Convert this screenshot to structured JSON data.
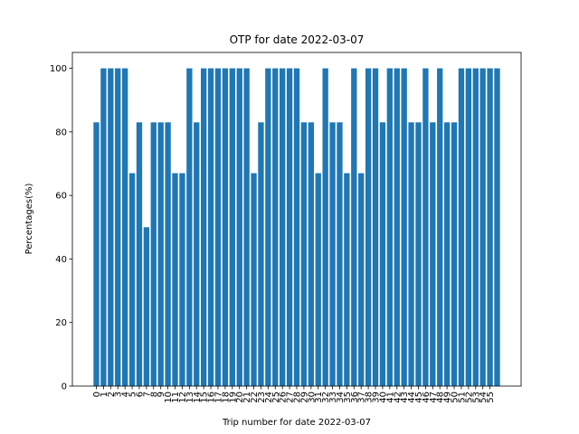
{
  "chart_data": {
    "type": "bar",
    "title": "OTP for date 2022-03-07",
    "xlabel": "Trip number for date 2022-03-07",
    "ylabel": "Percentages(%)",
    "ylim": [
      0,
      105
    ],
    "yticks": [
      0,
      20,
      40,
      60,
      80,
      100
    ],
    "color": "#1f77b4",
    "grid": false,
    "categories": [
      "0",
      "1",
      "2",
      "3",
      "4",
      "5",
      "6",
      "7",
      "8",
      "9",
      "10",
      "11",
      "12",
      "13",
      "14",
      "15",
      "16",
      "17",
      "18",
      "19",
      "20",
      "21",
      "22",
      "23",
      "24",
      "25",
      "26",
      "27",
      "28",
      "29",
      "30",
      "31",
      "32",
      "33",
      "34",
      "35",
      "36",
      "37",
      "38",
      "39",
      "40",
      "41",
      "42",
      "43",
      "44",
      "45",
      "46",
      "47",
      "48",
      "49",
      "50",
      "51",
      "52",
      "53",
      "54",
      "55",
      "56"
    ],
    "xtick_labels": [
      "0",
      "1",
      "2",
      "3",
      "4",
      "5",
      "6",
      "7",
      "8",
      "9",
      "10",
      "11",
      "12",
      "13",
      "14",
      "15",
      "16",
      "17",
      "18",
      "19",
      "20",
      "21",
      "22",
      "23",
      "24",
      "25",
      "26",
      "27",
      "28",
      "29",
      "30",
      "31",
      "32",
      "33",
      "34",
      "35",
      "36",
      "37",
      "38",
      "39",
      "40",
      "41",
      "42",
      "43",
      "44",
      "45",
      "46",
      "47",
      "48",
      "49",
      "50",
      "51",
      "52",
      "53",
      "54",
      "55"
    ],
    "values": [
      83,
      100,
      100,
      100,
      100,
      67,
      83,
      50,
      83,
      83,
      83,
      67,
      67,
      100,
      83,
      100,
      100,
      100,
      100,
      100,
      100,
      100,
      67,
      83,
      100,
      100,
      100,
      100,
      100,
      83,
      83,
      67,
      100,
      83,
      83,
      67,
      100,
      67,
      100,
      100,
      83,
      100,
      100,
      100,
      83,
      83,
      100,
      83,
      100,
      83,
      83,
      100,
      100,
      100,
      100,
      100,
      100
    ]
  }
}
